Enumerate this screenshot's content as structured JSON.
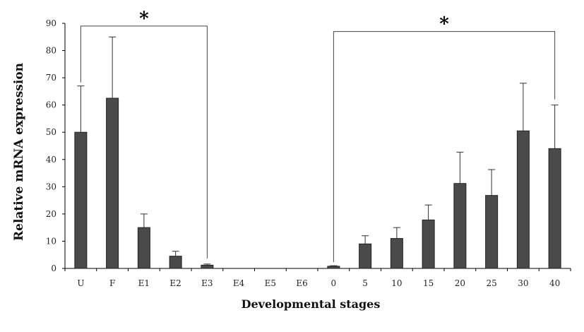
{
  "chart_data": {
    "type": "bar",
    "title": "",
    "xlabel": "Developmental stages",
    "ylabel": "Relative mRNA expression",
    "ylim": [
      0,
      90
    ],
    "yticks": [
      0,
      10,
      20,
      30,
      40,
      50,
      60,
      70,
      80,
      90
    ],
    "grid": false,
    "legend": "none",
    "bar_color": "#4a4a4a",
    "categories": [
      "U",
      "F",
      "E1",
      "E2",
      "E3",
      "E4",
      "E5",
      "E6",
      "0",
      "5",
      "10",
      "15",
      "20",
      "25",
      "30",
      "40"
    ],
    "values": [
      50,
      62.5,
      15,
      4.5,
      1.2,
      0,
      0,
      0,
      0.8,
      9,
      11,
      17.8,
      31.2,
      26.8,
      50.5,
      44
    ],
    "error_upper": [
      17,
      22.5,
      5,
      1.8,
      0.4,
      0,
      0,
      0,
      0.2,
      3,
      4,
      5.5,
      11.5,
      9.5,
      17.5,
      16
    ],
    "annotations": [
      {
        "text": "*",
        "from_category": "U",
        "to_category": "E3",
        "level": 89
      },
      {
        "text": "*",
        "from_category": "0",
        "to_category": "40",
        "level": 87
      }
    ]
  }
}
